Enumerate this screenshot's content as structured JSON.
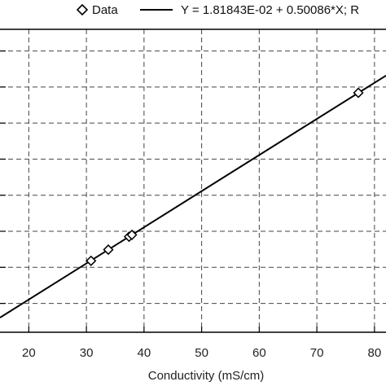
{
  "chart_data": {
    "type": "scatter",
    "title": "",
    "xlabel": "Conductivity (mS/cm)",
    "ylabel": "",
    "xlim": [
      15,
      82
    ],
    "ylim": [
      5.5,
      47.5
    ],
    "x_ticks": [
      20,
      30,
      40,
      50,
      60,
      70,
      80
    ],
    "y_gridlines": [
      9.5,
      14.5,
      19.5,
      24.5,
      29.5,
      34.5,
      39.5,
      44.5
    ],
    "grid": true,
    "grid_style": "dashed",
    "legend_position": "top",
    "legend": {
      "data_label": "Data",
      "fit_label": "Y = 1.81843E-02 + 0.50086*X; R"
    },
    "series": [
      {
        "name": "Data",
        "marker": "diamond",
        "points": [
          {
            "x": 30.8,
            "y": 15.4
          },
          {
            "x": 33.8,
            "y": 16.95
          },
          {
            "x": 37.4,
            "y": 18.75
          },
          {
            "x": 37.9,
            "y": 19.0
          },
          {
            "x": 77.2,
            "y": 38.7
          }
        ]
      },
      {
        "name": "Y = 1.81843E-02 + 0.50086*X; R",
        "type": "line",
        "intercept": 0.0181843,
        "slope": 0.50086
      }
    ]
  }
}
